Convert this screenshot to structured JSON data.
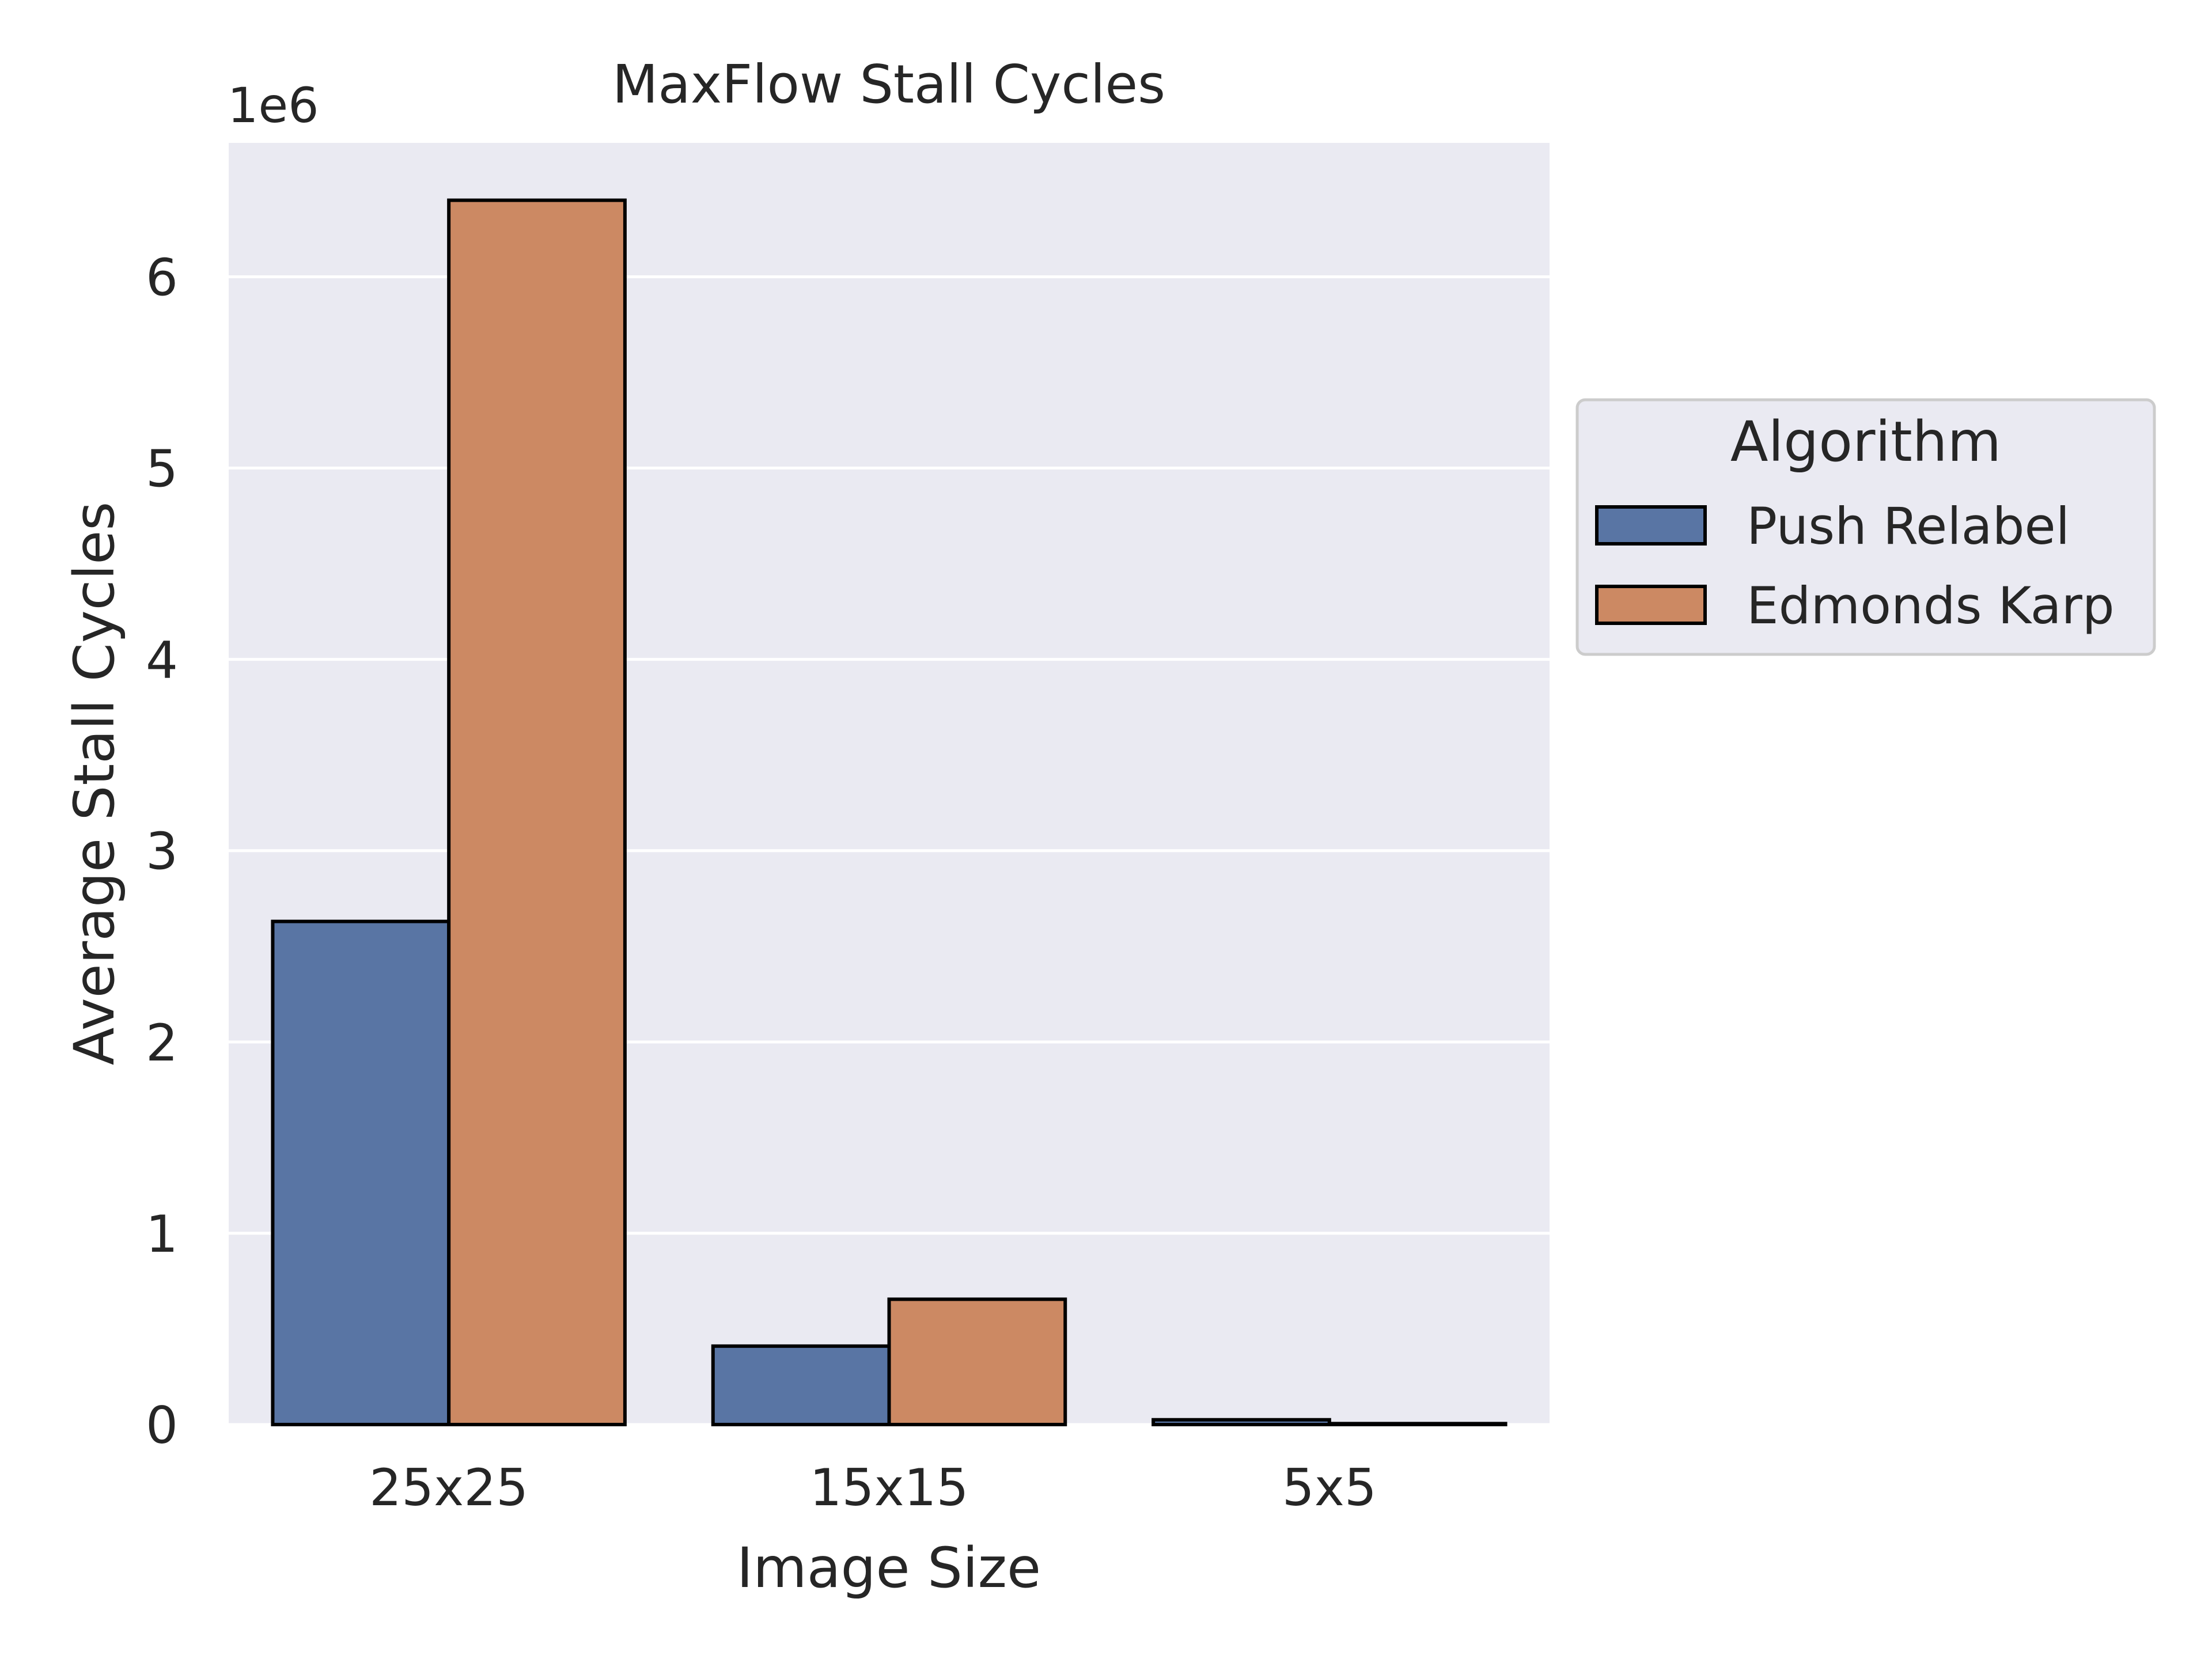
{
  "chart_data": {
    "type": "bar",
    "title": "MaxFlow Stall Cycles",
    "xlabel": "Image Size",
    "ylabel": "Average Stall Cycles",
    "y_offset_label": "1e6",
    "categories": [
      "25x25",
      "15x15",
      "5x5"
    ],
    "series": [
      {
        "name": "Push Relabel",
        "color": "#5975a4",
        "values": [
          2630000,
          410000,
          25000
        ]
      },
      {
        "name": "Edmonds Karp",
        "color": "#cc8963",
        "values": [
          6400000,
          655000,
          5000
        ]
      }
    ],
    "ylim": [
      0,
      6700000
    ],
    "yticks": [
      0,
      1000000,
      2000000,
      3000000,
      4000000,
      5000000,
      6000000
    ],
    "ytick_labels": [
      "0",
      "1",
      "2",
      "3",
      "4",
      "5",
      "6"
    ],
    "grid": true,
    "legend": {
      "title": "Algorithm",
      "placement": "center-right, outside plot"
    },
    "colors": {
      "plot_background": "#eaeaf2",
      "grid": "#ffffff",
      "bar_edge": "#000000"
    }
  }
}
